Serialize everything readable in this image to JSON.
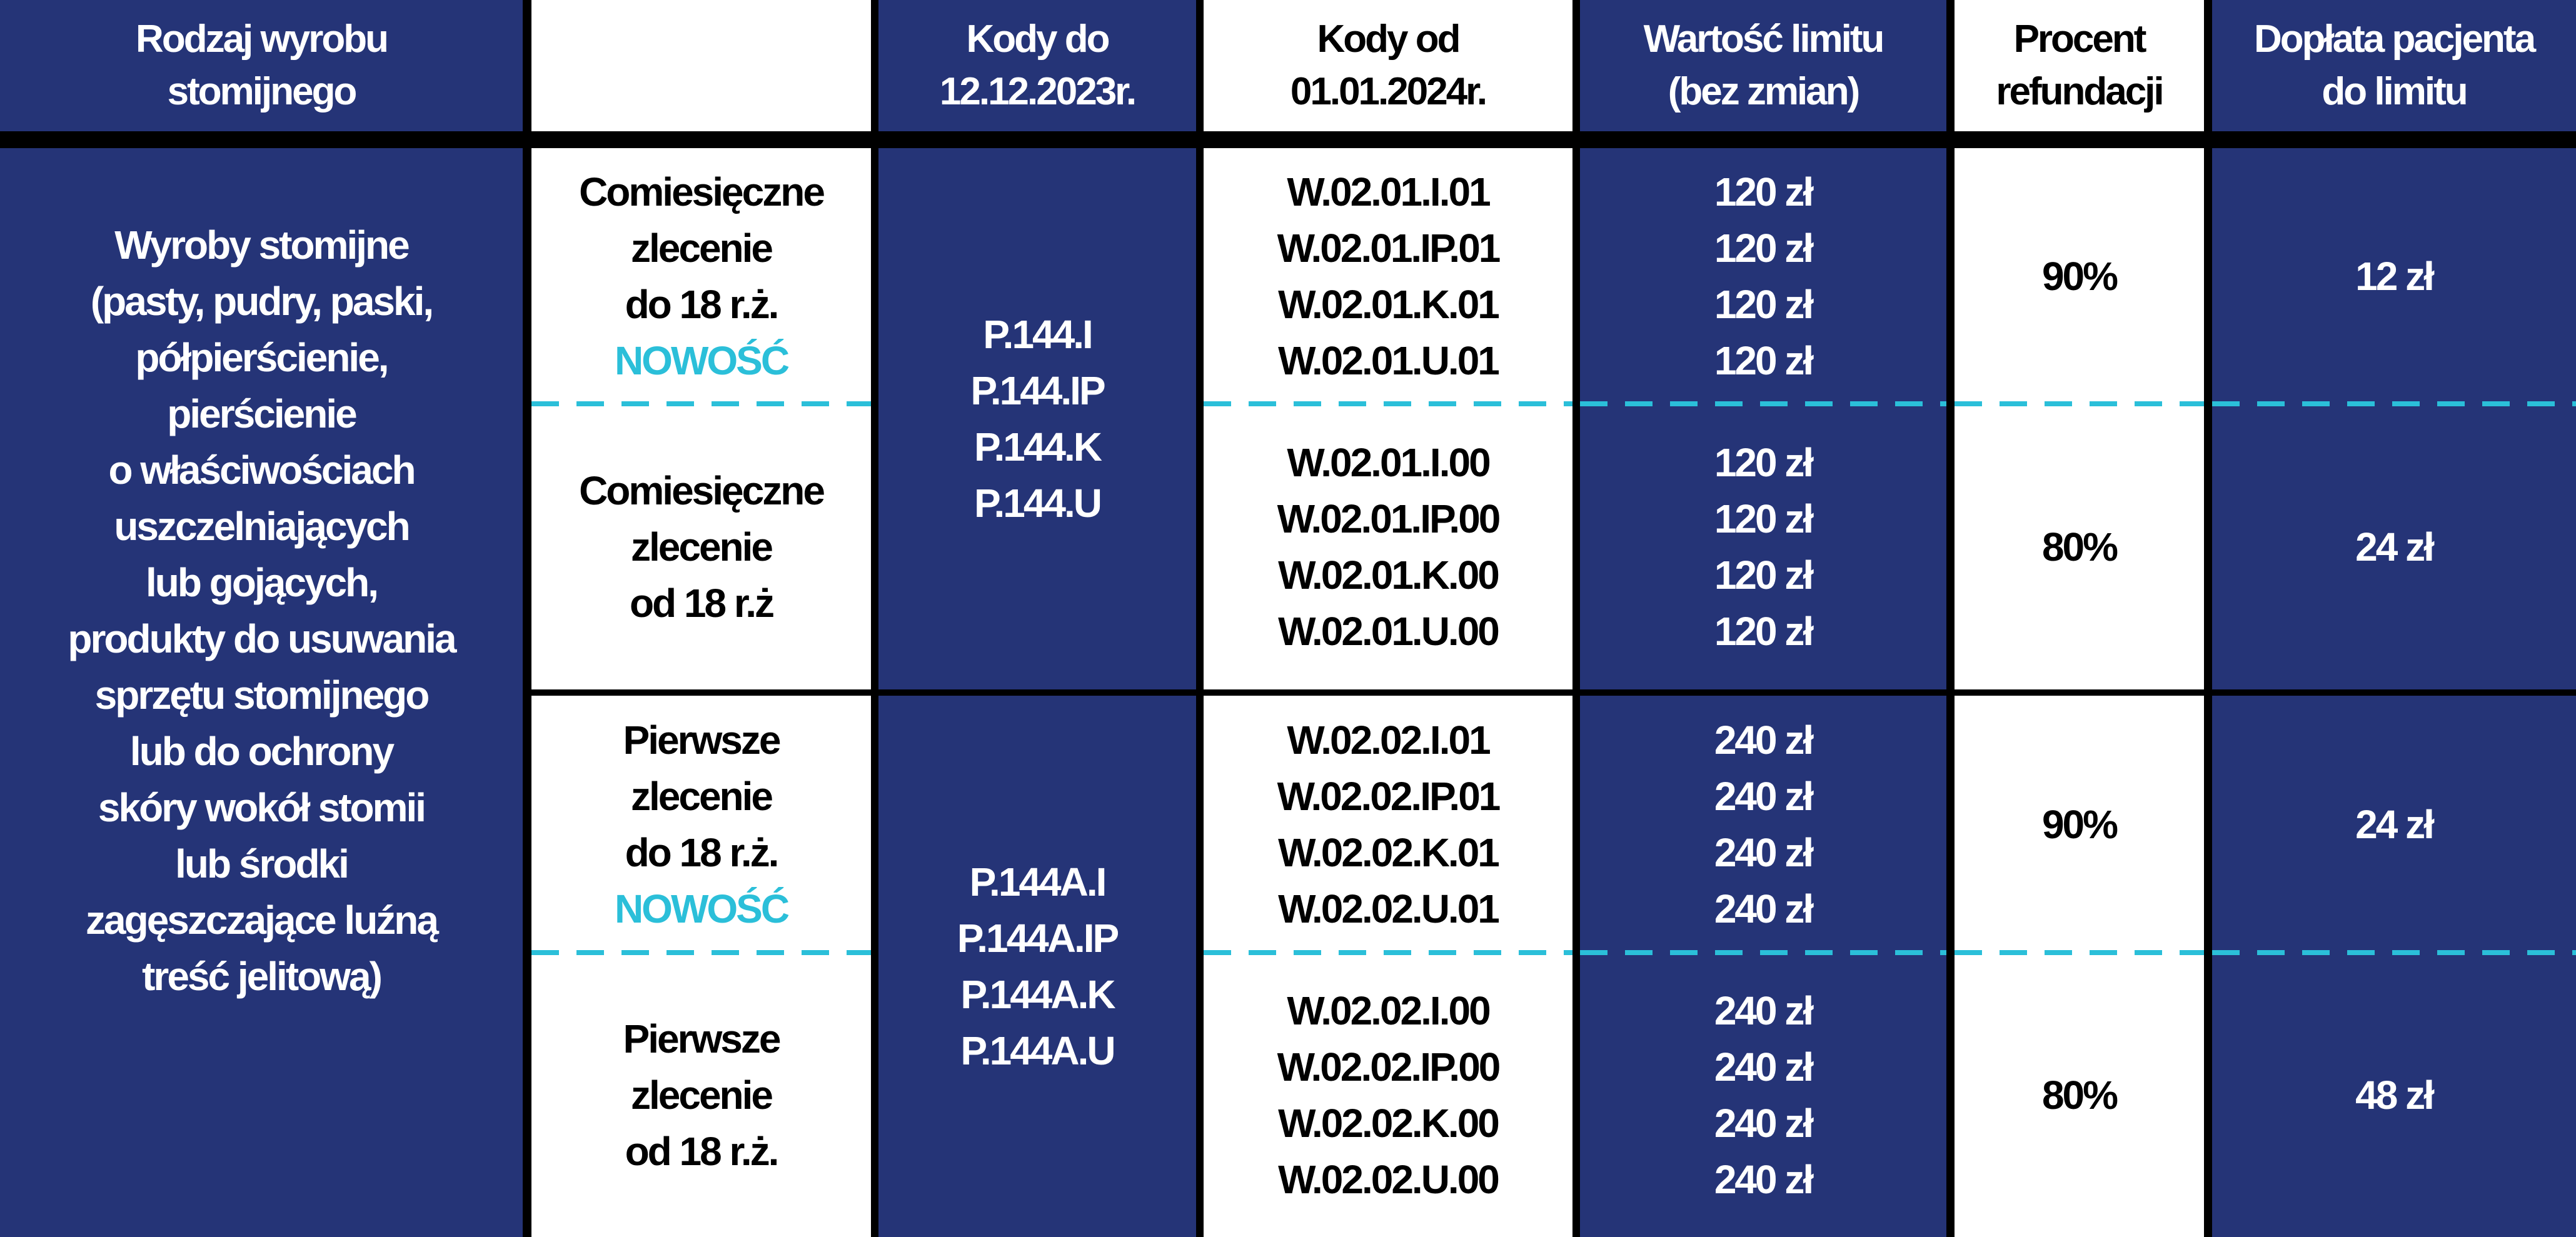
{
  "header": {
    "product_type": [
      "Rodzaj wyrobu",
      "stomijnego"
    ],
    "blank": "",
    "codes_old": [
      "Kody do",
      "12.12.2023r."
    ],
    "codes_new": [
      "Kody od",
      "01.01.2024r."
    ],
    "limit_value": [
      "Wartość limitu",
      "(bez zmian)"
    ],
    "refund_percent": [
      "Procent",
      "refundacji"
    ],
    "patient_copay": [
      "Dopłata pacjenta",
      "do limitu"
    ]
  },
  "product_description": [
    "Wyroby stomijne",
    "(pasty, pudry, paski,",
    "półpierścienie,",
    "pierścienie",
    "o właściwościach",
    "uszczelniających",
    "lub gojących,",
    "produkty do usuwania",
    "sprzętu stomijnego",
    "lub do ochrony",
    "skóry wokół stomii",
    "lub środki",
    "zagęszczające luźną",
    "treść jelitową)"
  ],
  "groups": [
    {
      "old_codes": [
        "P.144.I",
        "P.144.IP",
        "P.144.K",
        "P.144.U"
      ],
      "subrows": [
        {
          "order": [
            "Comiesięczne",
            "zlecenie",
            "do 18 r.ż."
          ],
          "badge": "NOWOŚĆ",
          "new_codes": [
            "W.02.01.I.01",
            "W.02.01.IP.01",
            "W.02.01.K.01",
            "W.02.01.U.01"
          ],
          "limits": [
            "120 zł",
            "120 zł",
            "120 zł",
            "120 zł"
          ],
          "percent": "90%",
          "copay": "12 zł"
        },
        {
          "order": [
            "Comiesięczne",
            "zlecenie",
            "od 18 r.ż"
          ],
          "badge": "",
          "new_codes": [
            "W.02.01.I.00",
            "W.02.01.IP.00",
            "W.02.01.K.00",
            "W.02.01.U.00"
          ],
          "limits": [
            "120 zł",
            "120 zł",
            "120 zł",
            "120 zł"
          ],
          "percent": "80%",
          "copay": "24 zł"
        }
      ]
    },
    {
      "old_codes": [
        "P.144A.I",
        "P.144A.IP",
        "P.144A.K",
        "P.144A.U"
      ],
      "subrows": [
        {
          "order": [
            "Pierwsze",
            "zlecenie",
            "do 18 r.ż."
          ],
          "badge": "NOWOŚĆ",
          "new_codes": [
            "W.02.02.I.01",
            "W.02.02.IP.01",
            "W.02.02.K.01",
            "W.02.02.U.01"
          ],
          "limits": [
            "240 zł",
            "240 zł",
            "240 zł",
            "240 zł"
          ],
          "percent": "90%",
          "copay": "24 zł"
        },
        {
          "order": [
            "Pierwsze",
            "zlecenie",
            "od 18 r.ż."
          ],
          "badge": "",
          "new_codes": [
            "W.02.02.I.00",
            "W.02.02.IP.00",
            "W.02.02.K.00",
            "W.02.02.U.00"
          ],
          "limits": [
            "240 zł",
            "240 zł",
            "240 zł",
            "240 zł"
          ],
          "percent": "80%",
          "copay": "48 zł"
        }
      ]
    }
  ],
  "colors": {
    "navy": "#253477",
    "accent": "#2bbfd9",
    "border": "#000000"
  }
}
